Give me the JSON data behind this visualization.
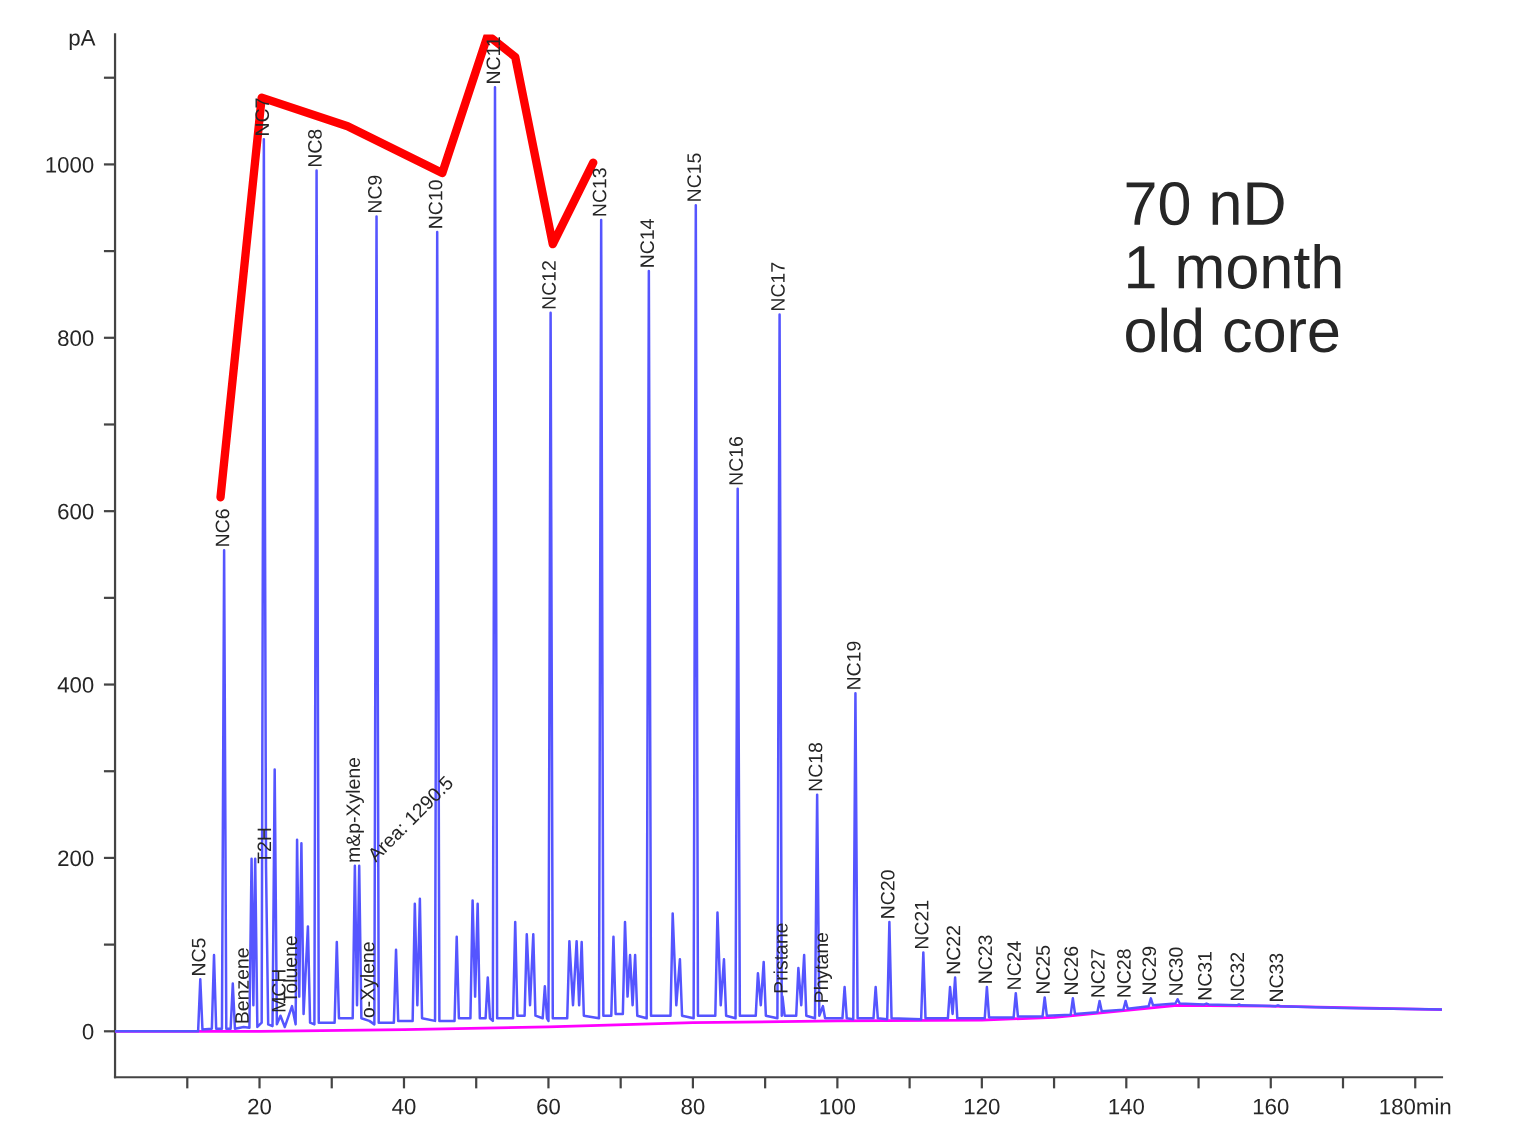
{
  "chart_data": {
    "type": "line",
    "ylabel": "pA",
    "xlim": [
      0,
      183.7
    ],
    "ylim": [
      -53,
      1150
    ],
    "xticks": [
      {
        "value": 10,
        "label": null
      },
      20,
      {
        "value": 30,
        "label": null
      },
      40,
      {
        "value": 50,
        "label": null
      },
      60,
      {
        "value": 70,
        "label": null
      },
      80,
      {
        "value": 90,
        "label": null
      },
      100,
      {
        "value": 110,
        "label": null
      },
      120,
      {
        "value": 130,
        "label": null
      },
      140,
      {
        "value": 150,
        "label": null
      },
      160,
      {
        "value": 170,
        "label": null
      },
      {
        "value": 180,
        "label": "180min"
      }
    ],
    "yticks": [
      0,
      {
        "value": 100,
        "label": null
      },
      200,
      {
        "value": 300,
        "label": null
      },
      400,
      {
        "value": 500,
        "label": null
      },
      600,
      {
        "value": 700,
        "label": null
      },
      800,
      {
        "value": 900,
        "label": null
      },
      1000,
      {
        "value": 1100,
        "label": null
      }
    ],
    "grid": false,
    "legend": false,
    "series": [
      {
        "color": "#5555ff",
        "x": [
          0,
          11.5,
          11.8,
          12.1,
          13.4,
          13.7,
          14.0,
          14.8,
          15.1,
          15.4,
          16.0,
          16.3,
          16.6,
          17.8,
          18.6,
          18.9,
          19.15,
          19.4,
          19.7,
          20.3,
          20.6,
          20.9,
          21.2,
          21.8,
          22.1,
          22.4,
          22.9,
          23.5,
          24.5,
          25.0,
          25.2,
          25.5,
          25.8,
          26.1,
          26.7,
          27.0,
          27.6,
          27.9,
          28.2,
          30.4,
          30.7,
          31.0,
          32.9,
          33.2,
          33.5,
          33.8,
          34.1,
          35.2,
          35.9,
          36.2,
          36.5,
          38.6,
          38.9,
          39.2,
          41.2,
          41.5,
          41.85,
          42.2,
          42.5,
          44.3,
          44.6,
          44.9,
          47.0,
          47.3,
          47.6,
          49.2,
          49.5,
          49.85,
          50.2,
          50.5,
          51.3,
          51.6,
          51.9,
          52.3,
          52.6,
          52.9,
          55.1,
          55.4,
          55.7,
          56.7,
          57.0,
          57.45,
          57.9,
          58.2,
          59.2,
          59.5,
          59.8,
          60.0,
          60.3,
          60.6,
          62.6,
          62.9,
          63.4,
          63.9,
          64.25,
          64.6,
          64.9,
          67.0,
          67.3,
          67.6,
          68.7,
          69.0,
          69.3,
          70.3,
          70.6,
          70.95,
          71.3,
          71.65,
          72.0,
          72.3,
          73.6,
          73.9,
          74.2,
          76.9,
          77.2,
          77.7,
          78.2,
          78.5,
          80.1,
          80.4,
          80.7,
          83.1,
          83.4,
          83.85,
          84.3,
          84.6,
          85.9,
          86.2,
          86.5,
          88.7,
          89.0,
          89.4,
          89.8,
          90.1,
          91.7,
          92.0,
          92.3,
          92.4,
          92.7,
          94.3,
          94.6,
          95.0,
          95.4,
          95.7,
          96.9,
          97.2,
          97.5,
          98.0,
          98.3,
          100.7,
          101.0,
          101.3,
          102.2,
          102.5,
          102.8,
          105.0,
          105.3,
          105.6,
          106.9,
          107.2,
          107.5,
          111.6,
          111.9,
          112.2,
          115.3,
          115.6,
          115.95,
          116.3,
          116.6,
          120.4,
          120.7,
          121.0,
          124.4,
          124.7,
          125.0,
          128.4,
          128.7,
          129.0,
          132.3,
          132.6,
          132.9,
          136.0,
          136.3,
          136.6,
          139.6,
          139.9,
          140.2,
          143.1,
          143.4,
          143.7,
          146.8,
          147.1,
          147.4,
          150.8,
          151.1,
          151.4,
          155.3,
          155.6,
          155.9,
          160.7,
          161.0,
          161.3,
          170,
          183.7
        ],
        "values": [
          0,
          0,
          60,
          2,
          3,
          88,
          3,
          3,
          555,
          3,
          3,
          55,
          3,
          5,
          4,
          199,
          30,
          199,
          5,
          10,
          1029,
          190,
          8,
          6,
          302,
          8,
          18,
          5,
          29,
          8,
          221,
          40,
          217,
          20,
          121,
          10,
          8,
          993,
          10,
          10,
          103,
          15,
          15,
          191,
          30,
          191,
          15,
          12,
          8,
          940,
          10,
          10,
          94,
          12,
          12,
          147,
          30,
          153,
          15,
          12,
          922,
          12,
          12,
          109,
          15,
          15,
          151,
          40,
          147,
          15,
          15,
          62,
          15,
          12,
          1089,
          15,
          15,
          126,
          18,
          18,
          112,
          30,
          112,
          18,
          15,
          52,
          15,
          12,
          829,
          15,
          15,
          104,
          30,
          104,
          30,
          103,
          18,
          15,
          936,
          18,
          18,
          109,
          20,
          20,
          126,
          40,
          88,
          30,
          88,
          18,
          15,
          877,
          18,
          18,
          136,
          30,
          83,
          18,
          15,
          953,
          18,
          18,
          137,
          30,
          83,
          18,
          15,
          626,
          18,
          18,
          67,
          30,
          80,
          18,
          15,
          827,
          18,
          40,
          18,
          18,
          73,
          30,
          88,
          18,
          15,
          273,
          18,
          29,
          15,
          15,
          51,
          15,
          14,
          390,
          15,
          15,
          51,
          15,
          14,
          126,
          15,
          14,
          91,
          15,
          15,
          51,
          20,
          62,
          15,
          15,
          51,
          16,
          16,
          44,
          17,
          17,
          39,
          18,
          19,
          38,
          20,
          22,
          35,
          23,
          25,
          35,
          26,
          29,
          38,
          30,
          32,
          37,
          32,
          31,
          32,
          31,
          30,
          31,
          30,
          29,
          30,
          29,
          27,
          25
        ]
      },
      {
        "color": "#ff00ff",
        "x": [
          0,
          12,
          20,
          40,
          60,
          80,
          100,
          120,
          130,
          140,
          147,
          160,
          183.7
        ],
        "values": [
          0,
          0,
          0,
          2,
          5,
          10,
          12,
          13,
          16,
          24,
          30,
          29,
          25
        ]
      },
      {
        "color": "#ff0000",
        "x": [
          14.6,
          20.3,
          32.2,
          45.3,
          51.6,
          55.4,
          60.6,
          66.2
        ],
        "values": [
          616,
          1077,
          1044,
          990,
          1149,
          1124,
          908,
          1002
        ]
      }
    ],
    "annotations": [
      "70 nD\n1 month\nold core",
      {
        "text": "NC5",
        "x": 11.8,
        "y": 60
      },
      {
        "text": "NC6",
        "x": 15.1,
        "y": 555
      },
      {
        "text": "Benzene",
        "x": 17.8,
        "y": 5
      },
      {
        "text": "NC7",
        "x": 20.6,
        "y": 1029
      },
      {
        "text": "T2H",
        "x": 20.9,
        "y": 190
      },
      {
        "text": "MCH",
        "x": 22.9,
        "y": 18
      },
      {
        "text": "Toluene",
        "x": 24.5,
        "y": 29
      },
      {
        "text": "NC8",
        "x": 27.9,
        "y": 993
      },
      {
        "text": "m&p-Xylene",
        "x": 33.2,
        "y": 191
      },
      {
        "text": "o-Xylene",
        "x": 35.2,
        "y": 12
      },
      {
        "text": "NC9",
        "x": 36.2,
        "y": 940
      },
      {
        "text": "NC10",
        "x": 44.6,
        "y": 922
      },
      {
        "text": "NC11",
        "x": 52.6,
        "y": 1089
      },
      {
        "text": "NC12",
        "x": 60.3,
        "y": 829
      },
      {
        "text": "NC13",
        "x": 67.3,
        "y": 936
      },
      {
        "text": "NC14",
        "x": 73.9,
        "y": 877
      },
      {
        "text": "NC15",
        "x": 80.4,
        "y": 953
      },
      {
        "text": "NC16",
        "x": 86.2,
        "y": 626
      },
      {
        "text": "NC17",
        "x": 92.0,
        "y": 827
      },
      {
        "text": "Pristane",
        "x": 92.4,
        "y": 40
      },
      {
        "text": "NC18",
        "x": 97.2,
        "y": 273
      },
      {
        "text": "Phytane",
        "x": 98.0,
        "y": 29
      },
      {
        "text": "NC19",
        "x": 102.5,
        "y": 390
      },
      {
        "text": "NC20",
        "x": 107.2,
        "y": 126
      },
      {
        "text": "NC21",
        "x": 111.9,
        "y": 91
      },
      {
        "text": "NC22",
        "x": 116.3,
        "y": 62
      },
      {
        "text": "NC23",
        "x": 120.7,
        "y": 51
      },
      {
        "text": "NC24",
        "x": 124.7,
        "y": 44
      },
      {
        "text": "NC25",
        "x": 128.7,
        "y": 39
      },
      {
        "text": "NC26",
        "x": 132.6,
        "y": 38
      },
      {
        "text": "NC27",
        "x": 136.3,
        "y": 35
      },
      {
        "text": "NC28",
        "x": 139.9,
        "y": 35
      },
      {
        "text": "NC29",
        "x": 143.4,
        "y": 38
      },
      {
        "text": "NC30",
        "x": 147.1,
        "y": 37
      },
      {
        "text": "NC31",
        "x": 151.1,
        "y": 32
      },
      {
        "text": "NC32",
        "x": 155.6,
        "y": 31
      },
      {
        "text": "NC33",
        "x": 161.0,
        "y": 30
      },
      {
        "text": "Area: 1290.5",
        "x": 33.8,
        "y": 191
      }
    ]
  }
}
